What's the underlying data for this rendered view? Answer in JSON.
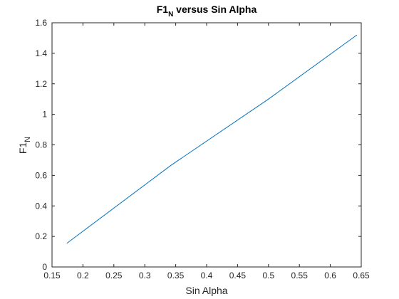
{
  "chart_data": {
    "type": "line",
    "title": {
      "main": "F1",
      "sub": "N",
      "rest": " versus Sin Alpha"
    },
    "xlabel": "Sin Alpha",
    "ylabel": {
      "main": "F1",
      "sub": "N"
    },
    "xlim": [
      0.15,
      0.65
    ],
    "ylim": [
      0,
      1.6
    ],
    "xticks": [
      0.15,
      0.2,
      0.25,
      0.3,
      0.35,
      0.4,
      0.45,
      0.5,
      0.55,
      0.6,
      0.65
    ],
    "xtick_labels": [
      "0.15",
      "0.2",
      "0.25",
      "0.3",
      "0.35",
      "0.4",
      "0.45",
      "0.5",
      "0.55",
      "0.6",
      "0.65"
    ],
    "yticks": [
      0,
      0.2,
      0.4,
      0.6,
      0.8,
      1.0,
      1.2,
      1.4,
      1.6
    ],
    "ytick_labels": [
      "0",
      "0.2",
      "0.4",
      "0.6",
      "0.8",
      "1",
      "1.2",
      "1.4",
      "1.6"
    ],
    "grid": false,
    "box": true,
    "series": [
      {
        "color": "#0072BD",
        "x": [
          0.174,
          0.342,
          0.5,
          0.643
        ],
        "y": [
          0.155,
          0.665,
          1.1,
          1.52
        ]
      }
    ]
  }
}
